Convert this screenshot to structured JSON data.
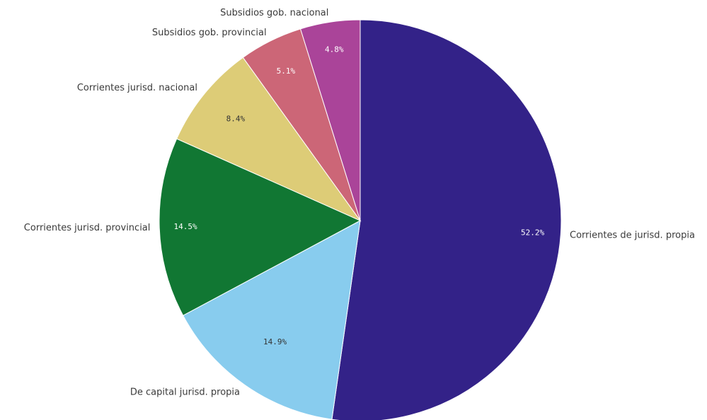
{
  "chart_data": {
    "type": "pie",
    "title": "",
    "start_angle_deg": 0,
    "direction": "clockwise",
    "slices": [
      {
        "label": "Corrientes de jurisd. propia",
        "value": 52.2,
        "value_label": "52.2%",
        "color": "#332288",
        "text_color": "#ffffff"
      },
      {
        "label": "De capital jurisd. propia",
        "value": 14.9,
        "value_label": "14.9%",
        "color": "#88CCEE",
        "text_color": "#333333"
      },
      {
        "label": "Corrientes jurisd. provincial",
        "value": 14.5,
        "value_label": "14.5%",
        "color": "#117733",
        "text_color": "#ffffff"
      },
      {
        "label": "Corrientes jurisd. nacional",
        "value": 8.4,
        "value_label": "8.4%",
        "color": "#DDCC77",
        "text_color": "#333333"
      },
      {
        "label": "Subsidios gob. provincial",
        "value": 5.1,
        "value_label": "5.1%",
        "color": "#CC6677",
        "text_color": "#ffffff"
      },
      {
        "label": "Subsidios gob. nacional",
        "value": 4.8,
        "value_label": "4.8%",
        "color": "#AA4499",
        "text_color": "#ffffff"
      }
    ]
  }
}
